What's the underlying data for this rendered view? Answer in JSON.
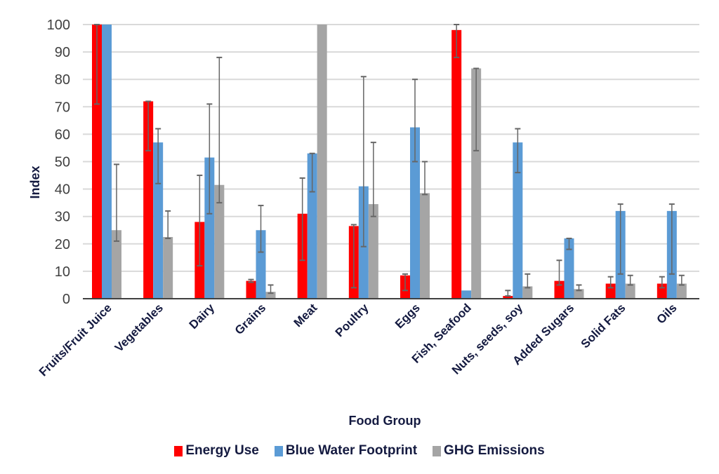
{
  "chart_data": {
    "type": "bar",
    "title": "",
    "xlabel": "Food Group",
    "ylabel": "Index",
    "ylim": [
      0,
      100
    ],
    "yticks": [
      0,
      10,
      20,
      30,
      40,
      50,
      60,
      70,
      80,
      90,
      100
    ],
    "grid": true,
    "legend_position": "bottom",
    "categories": [
      "Fruits/Fruit Juice",
      "Vegetables",
      "Dairy",
      "Grains",
      "Meat",
      "Poultry",
      "Eggs",
      "Fish, Seafood",
      "Nuts, seeds, soy",
      "Added Sugars",
      "Solid Fats",
      "Oils"
    ],
    "series": [
      {
        "name": "Energy Use",
        "color": "#ff0000",
        "values": [
          100,
          72,
          28,
          6.5,
          31,
          26.5,
          8.5,
          98,
          1,
          6.5,
          5.5,
          5.5
        ],
        "error_low": [
          71,
          54,
          12,
          6,
          14,
          4,
          3,
          88,
          1,
          5,
          4,
          4
        ],
        "error_high": [
          100,
          72,
          45,
          7,
          44,
          27,
          9,
          100,
          3,
          14,
          8,
          8
        ]
      },
      {
        "name": "Blue Water Footprint",
        "color": "#5b9bd5",
        "values": [
          100,
          57,
          51.5,
          25,
          53,
          41,
          62.5,
          3,
          57,
          22,
          32,
          32
        ],
        "error_low": [
          100,
          42,
          31,
          17,
          39,
          19,
          50,
          3,
          46,
          18,
          9,
          9
        ],
        "error_high": [
          100,
          62,
          71,
          34,
          53,
          81,
          80,
          3,
          62,
          22,
          34.5,
          34.5
        ]
      },
      {
        "name": "GHG Emissions",
        "color": "#a5a5a5",
        "values": [
          25,
          22.5,
          41.5,
          2.5,
          100,
          34.5,
          38.5,
          84,
          4.5,
          3.5,
          5.5,
          5.5
        ],
        "error_low": [
          21,
          22,
          35,
          2,
          100,
          30,
          38,
          54,
          4,
          3,
          5,
          5
        ],
        "error_high": [
          49,
          32,
          88,
          5,
          100,
          57,
          50,
          84,
          9,
          5,
          8.5,
          8.5
        ]
      }
    ]
  }
}
